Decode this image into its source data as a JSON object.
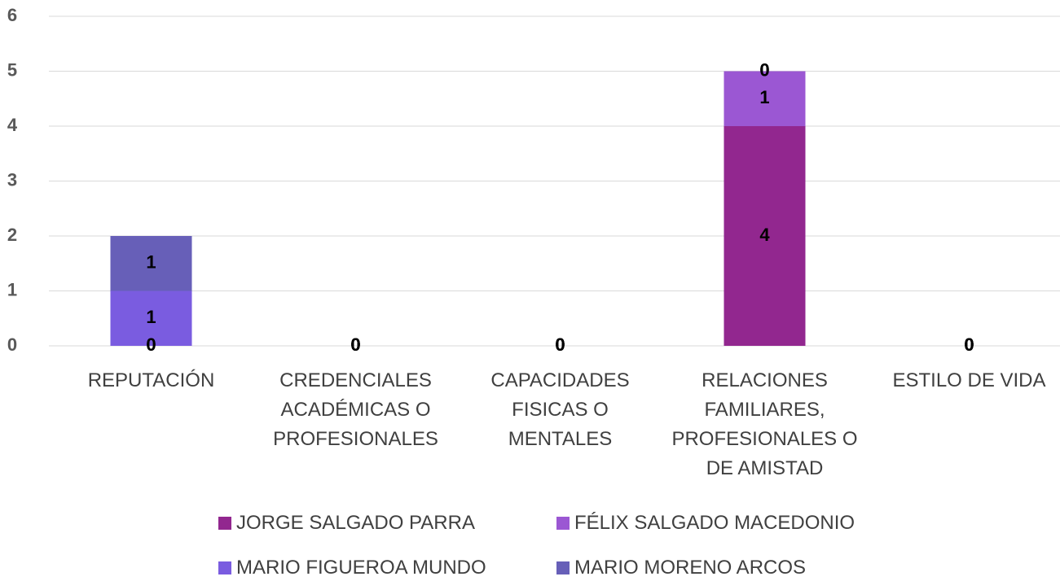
{
  "chart_data": {
    "type": "stacked_bar",
    "categories": [
      "REPUTACIÓN",
      "CREDENCIALES ACADÉMICAS O PROFESIONALES",
      "CAPACIDADES FISICAS O MENTALES",
      "RELACIONES FAMILIARES, PROFESIONALES O DE AMISTAD",
      "ESTILO DE VIDA"
    ],
    "series": [
      {
        "name": "JORGE SALGADO PARRA",
        "color": "#92278f",
        "values": [
          0,
          0,
          0,
          4,
          0
        ]
      },
      {
        "name": "FÉLIX SALGADO MACEDONIO",
        "color": "#9b57d3",
        "values": [
          0,
          0,
          0,
          1,
          0
        ]
      },
      {
        "name": "MARIO FIGUEROA MUNDO",
        "color": "#7a5ce0",
        "values": [
          1,
          0,
          0,
          0,
          0
        ]
      },
      {
        "name": "MARIO MORENO ARCOS",
        "color": "#675fb8",
        "values": [
          1,
          0,
          0,
          0,
          0
        ]
      }
    ],
    "ylim": [
      0,
      6
    ],
    "yticks": [
      0,
      1,
      2,
      3,
      4,
      5,
      6
    ],
    "grid": true,
    "legend": "bottom"
  }
}
